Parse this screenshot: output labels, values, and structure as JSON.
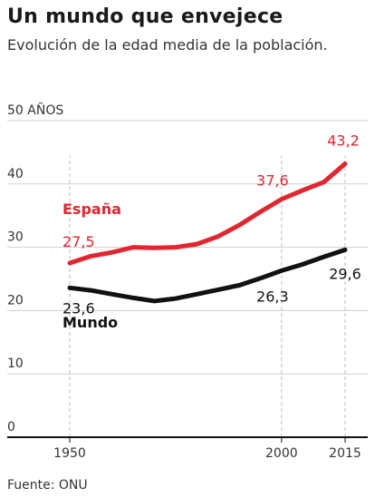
{
  "title": "Un mundo que envejece",
  "subtitle": "Evolución de la edad media de la población.",
  "source": "Fuente: ONU",
  "colors": {
    "espana": "#e2252f",
    "mundo": "#111111",
    "grid": "#cfcfcf",
    "axis": "#111111",
    "dashed": "#bdbdbd"
  },
  "chart_data": {
    "type": "line",
    "ylim": [
      0,
      50
    ],
    "xlim": [
      1950,
      2015
    ],
    "y_ticks": [
      0,
      10,
      20,
      30,
      40,
      50
    ],
    "y_tick_labels": [
      "0",
      "10",
      "20",
      "30",
      "40",
      "50 AÑOS"
    ],
    "x_ticks": [
      1950,
      2000,
      2015
    ],
    "x_tick_labels": [
      "1950",
      "2000",
      "2015"
    ],
    "series": [
      {
        "name": "España",
        "color": "#e2252f",
        "x": [
          1950,
          1955,
          1960,
          1965,
          1970,
          1975,
          1980,
          1985,
          1990,
          1995,
          2000,
          2005,
          2010,
          2015
        ],
        "y": [
          27.5,
          28.6,
          29.2,
          30.0,
          29.9,
          30.0,
          30.5,
          31.7,
          33.5,
          35.6,
          37.6,
          39.0,
          40.3,
          43.2
        ]
      },
      {
        "name": "Mundo",
        "color": "#111111",
        "x": [
          1950,
          1955,
          1960,
          1965,
          1970,
          1975,
          1980,
          1985,
          1990,
          1995,
          2000,
          2005,
          2010,
          2015
        ],
        "y": [
          23.6,
          23.2,
          22.6,
          22.0,
          21.5,
          21.9,
          22.6,
          23.3,
          24.0,
          25.1,
          26.3,
          27.3,
          28.5,
          29.6
        ]
      }
    ],
    "annotations": [
      {
        "series": 0,
        "x": 1950,
        "y": 27.5,
        "label": "27,5"
      },
      {
        "series": 0,
        "x": 2000,
        "y": 37.6,
        "label": "37,6"
      },
      {
        "series": 0,
        "x": 2015,
        "y": 43.2,
        "label": "43,2"
      },
      {
        "series": 1,
        "x": 1950,
        "y": 23.6,
        "label": "23,6"
      },
      {
        "series": 1,
        "x": 2000,
        "y": 26.3,
        "label": "26,3"
      },
      {
        "series": 1,
        "x": 2015,
        "y": 29.6,
        "label": "29,6"
      }
    ],
    "dashed_guides_x": [
      1950,
      2000,
      2015
    ],
    "grid": true
  }
}
